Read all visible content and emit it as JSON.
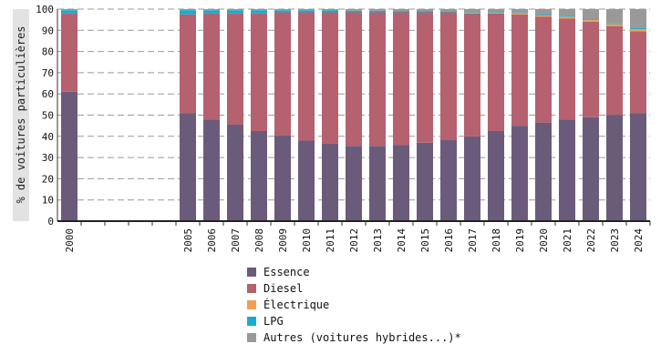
{
  "chart_data": {
    "type": "bar",
    "stacked": true,
    "ylabel": "% de voitures particulières",
    "ylim": [
      0,
      100
    ],
    "yticks": [
      0,
      10,
      20,
      30,
      40,
      50,
      60,
      70,
      80,
      90,
      100
    ],
    "grid": "horizontal dashed",
    "legend_position": "bottom",
    "categories": [
      "2000",
      "",
      "",
      "",
      "",
      "2005",
      "2006",
      "2007",
      "2008",
      "2009",
      "2010",
      "2011",
      "2012",
      "2013",
      "2014",
      "2015",
      "2016",
      "2017",
      "2018",
      "2019",
      "2020",
      "2021",
      "2022",
      "2023",
      "2024"
    ],
    "series": [
      {
        "name": "Essence",
        "color": "#6b5b7b",
        "values": [
          61,
          null,
          null,
          null,
          null,
          51,
          48,
          45.5,
          42.5,
          40.5,
          38,
          36.5,
          35.5,
          35.5,
          36,
          37,
          38.5,
          40,
          42.5,
          45,
          46.5,
          48,
          49,
          50,
          51
        ]
      },
      {
        "name": "Diesel",
        "color": "#b5616f",
        "values": [
          37,
          null,
          null,
          null,
          null,
          46.5,
          50,
          52.5,
          55.5,
          58,
          60.5,
          62,
          63,
          63,
          62.5,
          61.5,
          60,
          58,
          55.5,
          52.5,
          50,
          47.5,
          45,
          42,
          38.5
        ]
      },
      {
        "name": "Électrique",
        "color": "#f0a050",
        "values": [
          0,
          null,
          null,
          null,
          null,
          0,
          0,
          0,
          0,
          0,
          0,
          0,
          0,
          0,
          0,
          0,
          0,
          0.4,
          0.4,
          0.5,
          0.5,
          0.7,
          0.8,
          0.9,
          1
        ]
      },
      {
        "name": "LPG",
        "color": "#1aaccc",
        "values": [
          1.5,
          null,
          null,
          null,
          null,
          2,
          1.5,
          1.5,
          1.5,
          1,
          1,
          1,
          0.7,
          0.7,
          0.6,
          0.6,
          0.5,
          0.5,
          0.5,
          0.4,
          0.4,
          0.3,
          0.3,
          0.3,
          0.5
        ]
      },
      {
        "name": "Autres (voitures hybrides...)*",
        "color": "#999999",
        "values": [
          0.5,
          null,
          null,
          null,
          null,
          0.5,
          0.5,
          0.5,
          0.5,
          0.5,
          0.5,
          0.5,
          0.8,
          0.8,
          0.9,
          0.9,
          1,
          1.1,
          1.1,
          1.6,
          2.6,
          3.5,
          4.9,
          6.8,
          9
        ]
      }
    ]
  }
}
